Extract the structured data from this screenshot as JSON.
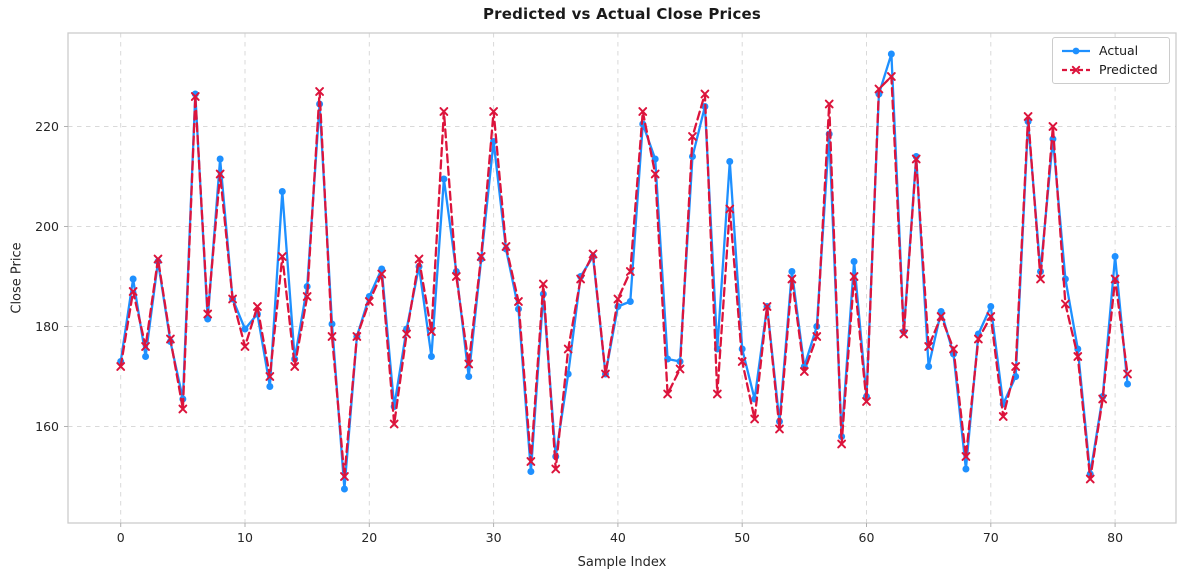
{
  "chart_data": {
    "type": "line",
    "title": "Predicted vs Actual Close Prices",
    "xlabel": "Sample Index",
    "ylabel": "Close Price",
    "x_is_index": true,
    "n_points": 82,
    "xlim": [
      -4.24,
      84.9
    ],
    "ylim": [
      140.7,
      238.7
    ],
    "x_ticks": [
      0,
      10,
      20,
      30,
      40,
      50,
      60,
      70,
      80
    ],
    "y_ticks": [
      160,
      180,
      200,
      220
    ],
    "grid": true,
    "legend_position": "upper right",
    "series": [
      {
        "name": "Actual",
        "color": "#1e90ff",
        "style": "solid",
        "marker": "circle",
        "values": [
          173,
          189.5,
          174,
          193,
          177,
          165.5,
          226.5,
          181.5,
          213.5,
          185.5,
          179.5,
          182.5,
          168,
          207,
          173.5,
          188,
          224.5,
          180.5,
          147.5,
          178,
          186,
          191.5,
          164,
          179.5,
          192,
          174,
          209.5,
          191,
          170,
          193.5,
          217,
          195.5,
          183.5,
          151,
          186.5,
          154,
          170.5,
          190,
          194,
          170.5,
          184,
          185,
          220.5,
          213.5,
          173.5,
          173,
          214,
          224,
          175.5,
          213,
          175.5,
          165.5,
          184,
          161,
          191,
          172,
          180,
          218.5,
          158,
          193,
          166,
          226.5,
          234.5,
          179,
          214,
          172,
          183,
          174.5,
          151.5,
          178.5,
          184,
          164.5,
          170,
          221,
          191,
          217.5,
          189.5,
          175.5,
          150.5,
          166,
          194,
          168.5
        ]
      },
      {
        "name": "Predicted",
        "color": "#dc143c",
        "style": "dashed",
        "marker": "x",
        "values": [
          172,
          187,
          176,
          193.5,
          177.5,
          163.5,
          226,
          182.5,
          210.5,
          185.5,
          176,
          184,
          170,
          194,
          172,
          186,
          227,
          178,
          150,
          178,
          185,
          190.5,
          160.5,
          178.5,
          193.5,
          179,
          223,
          190,
          172.5,
          194,
          223,
          196,
          185,
          153,
          188.5,
          151.5,
          175.5,
          189.5,
          194.5,
          170.5,
          185.5,
          191,
          223,
          210.5,
          166.5,
          171.5,
          218,
          226.5,
          166.5,
          203.5,
          173,
          161.5,
          184,
          159.5,
          189.5,
          171,
          178,
          224.5,
          156.5,
          190,
          165,
          227.5,
          230,
          178.5,
          213.5,
          176,
          182,
          175.5,
          154,
          177.5,
          182,
          162,
          172,
          222,
          189.5,
          220,
          184.5,
          174,
          149.5,
          165.5,
          189.5,
          170.5
        ]
      }
    ],
    "style_colors": {
      "grid": "#d9d9d9",
      "spine": "#cccccc",
      "tick_text": "#262626",
      "title_text": "#1a1a1a",
      "background": "#ffffff"
    }
  }
}
